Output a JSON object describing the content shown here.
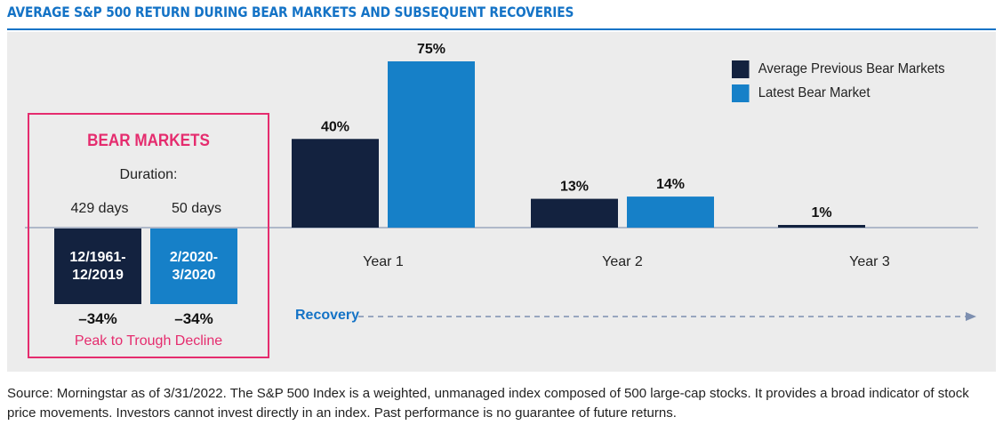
{
  "title": "AVERAGE S&P 500 RETURN DURING BEAR MARKETS AND SUBSEQUENT RECOVERIES",
  "colors": {
    "accent": "#1473c6",
    "dark": "#13223f",
    "light": "#1680c8",
    "highlight": "#e52c6e",
    "panel": "#ececec"
  },
  "bear_markets": {
    "title": "BEAR MARKETS",
    "duration_label": "Duration:",
    "items": [
      {
        "days": "429 days",
        "period": [
          "12/1961-",
          "12/2019"
        ],
        "decline": "–34%"
      },
      {
        "days": "50 days",
        "period": [
          "2/2020-",
          "3/2020"
        ],
        "decline": "–34%"
      }
    ],
    "footer": "Peak to Trough Decline"
  },
  "legend": {
    "series1": "Average Previous Bear Markets",
    "series2": "Latest Bear Market"
  },
  "recovery_label": "Recovery",
  "chart_data": {
    "type": "bar",
    "title": "AVERAGE S&P 500 RETURN DURING BEAR MARKETS AND SUBSEQUENT RECOVERIES",
    "categories": [
      "Year 1",
      "Year 2",
      "Year 3"
    ],
    "series": [
      {
        "name": "Average Previous Bear Markets",
        "values": [
          40,
          13,
          1
        ],
        "labels": [
          "40%",
          "13%",
          "1%"
        ]
      },
      {
        "name": "Latest Bear Market",
        "values": [
          75,
          14,
          null
        ],
        "labels": [
          "75%",
          "14%",
          ""
        ]
      }
    ],
    "ylim": [
      0,
      80
    ],
    "xlabel": "",
    "ylabel": "",
    "legend_position": "top-right"
  },
  "source": "Source: Morningstar as of 3/31/2022. The S&P 500 Index is a weighted, unmanaged index composed of 500 large-cap stocks. It provides a broad indicator of stock price movements. Investors cannot invest directly in an index. Past performance is no guarantee of future returns."
}
